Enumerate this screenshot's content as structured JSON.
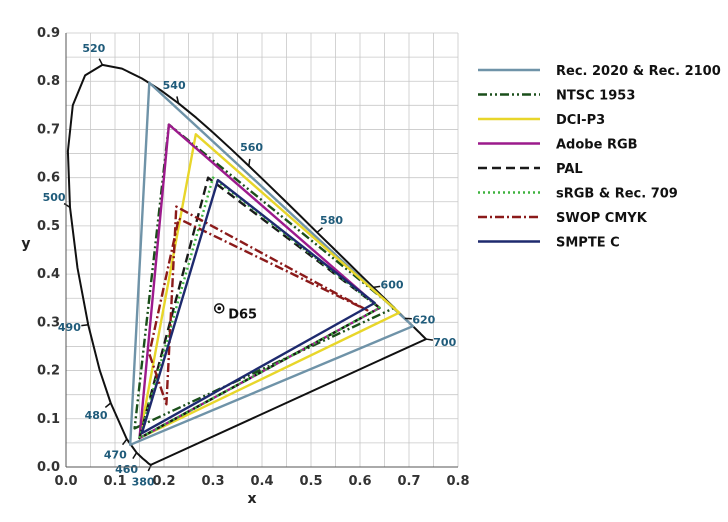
{
  "chart_data": {
    "type": "line",
    "title": "",
    "xlabel": "x",
    "ylabel": "y",
    "xlim": [
      0.0,
      0.8
    ],
    "ylim": [
      0.0,
      0.9
    ],
    "xticks": [
      "0.0",
      "0.1",
      "0.2",
      "0.3",
      "0.4",
      "0.5",
      "0.6",
      "0.7",
      "0.8"
    ],
    "yticks": [
      "0.0",
      "0.1",
      "0.2",
      "0.3",
      "0.4",
      "0.5",
      "0.6",
      "0.7",
      "0.8",
      "0.9"
    ],
    "grid": true,
    "legend_position": "right",
    "spectral_locus": [
      [
        0.1741,
        0.005
      ],
      [
        0.1738,
        0.0049
      ],
      [
        0.1733,
        0.0048
      ],
      [
        0.1726,
        0.0048
      ],
      [
        0.1714,
        0.0051
      ],
      [
        0.1689,
        0.0069
      ],
      [
        0.1644,
        0.0109
      ],
      [
        0.1566,
        0.0177
      ],
      [
        0.144,
        0.0297
      ],
      [
        0.1241,
        0.0578
      ],
      [
        0.0913,
        0.1327
      ],
      [
        0.0687,
        0.2007
      ],
      [
        0.0454,
        0.295
      ],
      [
        0.0235,
        0.4127
      ],
      [
        0.0082,
        0.5384
      ],
      [
        0.0039,
        0.6548
      ],
      [
        0.0139,
        0.7502
      ],
      [
        0.0389,
        0.812
      ],
      [
        0.0743,
        0.8338
      ],
      [
        0.1142,
        0.8262
      ],
      [
        0.1547,
        0.8059
      ],
      [
        0.1929,
        0.7816
      ],
      [
        0.2296,
        0.7543
      ],
      [
        0.2658,
        0.7243
      ],
      [
        0.3016,
        0.6923
      ],
      [
        0.3373,
        0.6589
      ],
      [
        0.3731,
        0.6245
      ],
      [
        0.4087,
        0.5896
      ],
      [
        0.4441,
        0.5547
      ],
      [
        0.4788,
        0.5202
      ],
      [
        0.5125,
        0.4866
      ],
      [
        0.5448,
        0.4544
      ],
      [
        0.5752,
        0.4242
      ],
      [
        0.6029,
        0.3965
      ],
      [
        0.627,
        0.3725
      ],
      [
        0.6482,
        0.3514
      ],
      [
        0.6658,
        0.334
      ],
      [
        0.6801,
        0.3197
      ],
      [
        0.6915,
        0.3083
      ],
      [
        0.7006,
        0.2993
      ],
      [
        0.7079,
        0.292
      ],
      [
        0.714,
        0.2859
      ],
      [
        0.719,
        0.2809
      ],
      [
        0.723,
        0.277
      ],
      [
        0.726,
        0.274
      ],
      [
        0.7347,
        0.2653
      ]
    ],
    "wavelength_labels": [
      {
        "label": "380",
        "x": 0.1741,
        "y": 0.005
      },
      {
        "label": "460",
        "x": 0.144,
        "y": 0.0297
      },
      {
        "label": "470",
        "x": 0.1241,
        "y": 0.0578
      },
      {
        "label": "480",
        "x": 0.0913,
        "y": 0.1327
      },
      {
        "label": "490",
        "x": 0.0454,
        "y": 0.295
      },
      {
        "label": "500",
        "x": 0.0082,
        "y": 0.5384
      },
      {
        "label": "520",
        "x": 0.0743,
        "y": 0.8338
      },
      {
        "label": "540",
        "x": 0.2296,
        "y": 0.7543
      },
      {
        "label": "560",
        "x": 0.3731,
        "y": 0.6245
      },
      {
        "label": "580",
        "x": 0.5125,
        "y": 0.4866
      },
      {
        "label": "600",
        "x": 0.627,
        "y": 0.3725
      },
      {
        "label": "620",
        "x": 0.6915,
        "y": 0.3083
      },
      {
        "label": "700",
        "x": 0.7347,
        "y": 0.2653
      }
    ],
    "white_point": {
      "name": "D65",
      "x": 0.3127,
      "y": 0.329
    },
    "series": [
      {
        "name": "Rec. 2020 & Rec. 2100",
        "color": "#6f93a8",
        "dash": "solid",
        "points": [
          [
            0.708,
            0.292
          ],
          [
            0.17,
            0.797
          ],
          [
            0.131,
            0.046
          ]
        ]
      },
      {
        "name": "NTSC 1953",
        "color": "#1a4f1a",
        "dash": "dashdotdot",
        "points": [
          [
            0.67,
            0.33
          ],
          [
            0.21,
            0.71
          ],
          [
            0.14,
            0.08
          ]
        ]
      },
      {
        "name": "DCI-P3",
        "color": "#e8d62a",
        "dash": "solid",
        "points": [
          [
            0.68,
            0.32
          ],
          [
            0.265,
            0.69
          ],
          [
            0.15,
            0.06
          ]
        ]
      },
      {
        "name": "Adobe RGB",
        "color": "#9c1a8c",
        "dash": "solid",
        "points": [
          [
            0.64,
            0.33
          ],
          [
            0.21,
            0.71
          ],
          [
            0.15,
            0.06
          ]
        ]
      },
      {
        "name": "PAL",
        "color": "#1a1a1a",
        "dash": "dash",
        "points": [
          [
            0.64,
            0.33
          ],
          [
            0.29,
            0.6
          ],
          [
            0.15,
            0.06
          ]
        ]
      },
      {
        "name": "sRGB & Rec. 709",
        "color": "#3fb33f",
        "dash": "dot",
        "points": [
          [
            0.64,
            0.33
          ],
          [
            0.3,
            0.6
          ],
          [
            0.15,
            0.06
          ]
        ]
      },
      {
        "name": "SWOP CMYK",
        "color": "#8b1a1a",
        "dash": "dashdot",
        "points": [
          [
            0.615,
            0.325
          ],
          [
            0.225,
            0.54
          ],
          [
            0.205,
            0.13
          ],
          [
            0.17,
            0.235
          ],
          [
            0.23,
            0.515
          ]
        ]
      },
      {
        "name": "SMPTE C",
        "color": "#1e2a6e",
        "dash": "solid",
        "points": [
          [
            0.63,
            0.34
          ],
          [
            0.31,
            0.595
          ],
          [
            0.155,
            0.07
          ]
        ]
      }
    ]
  }
}
